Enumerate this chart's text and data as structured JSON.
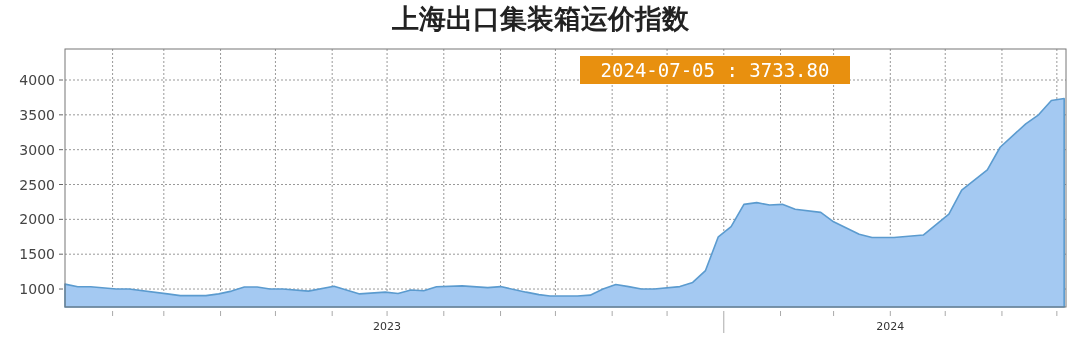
{
  "chart_data": {
    "type": "area",
    "title": "上海出口集装箱运价指数",
    "annotations": [
      "2024-07-05 : 3733.80"
    ],
    "xlim": [
      "2023-01-06",
      "2024-07-06"
    ],
    "xticks": [
      {
        "value": "2023-02-01",
        "label": null
      },
      {
        "value": "2023-03-01",
        "label": null
      },
      {
        "value": "2023-04-01",
        "label": null
      },
      {
        "value": "2023-05-01",
        "label": null
      },
      {
        "value": "2023-06-01",
        "label": null
      },
      {
        "value": "2023-07-01",
        "label": "2023"
      },
      {
        "value": "2023-08-01",
        "label": null
      },
      {
        "value": "2023-09-01",
        "label": null
      },
      {
        "value": "2023-10-01",
        "label": null
      },
      {
        "value": "2023-11-01",
        "label": null
      },
      {
        "value": "2023-12-01",
        "label": null
      },
      {
        "value": "2024-01-01",
        "label": null
      },
      {
        "value": "2024-02-01",
        "label": null
      },
      {
        "value": "2024-03-01",
        "label": null
      },
      {
        "value": "2024-04-01",
        "label": "2024"
      },
      {
        "value": "2024-05-01",
        "label": null
      },
      {
        "value": "2024-06-01",
        "label": null
      },
      {
        "value": "2024-07-01",
        "label": null
      }
    ],
    "ylim": [
      742,
      4445
    ],
    "yticks": [
      1000,
      1500,
      2000,
      2500,
      3000,
      3500,
      4000
    ],
    "grid": true,
    "x": [
      "2023-01-06",
      "2023-01-13",
      "2023-01-20",
      "2023-02-03",
      "2023-02-10",
      "2023-03-03",
      "2023-03-10",
      "2023-03-24",
      "2023-03-31",
      "2023-04-07",
      "2023-04-14",
      "2023-04-21",
      "2023-04-28",
      "2023-05-05",
      "2023-05-19",
      "2023-06-02",
      "2023-06-16",
      "2023-06-30",
      "2023-07-07",
      "2023-07-14",
      "2023-07-21",
      "2023-07-28",
      "2023-08-11",
      "2023-08-25",
      "2023-09-01",
      "2023-09-15",
      "2023-09-22",
      "2023-09-28",
      "2023-10-13",
      "2023-10-20",
      "2023-10-27",
      "2023-11-03",
      "2023-11-10",
      "2023-11-17",
      "2023-11-24",
      "2023-12-08",
      "2023-12-15",
      "2023-12-22",
      "2023-12-29",
      "2024-01-05",
      "2024-01-12",
      "2024-01-19",
      "2024-01-26",
      "2024-02-02",
      "2024-02-09",
      "2024-02-23",
      "2024-03-01",
      "2024-03-15",
      "2024-03-22",
      "2024-04-03",
      "2024-04-19",
      "2024-05-03",
      "2024-05-10",
      "2024-05-24",
      "2024-05-31",
      "2024-06-14",
      "2024-06-21",
      "2024-06-28",
      "2024-07-05"
    ],
    "series": [
      {
        "color": "#a4c9f2",
        "values": [
          1070,
          1033,
          1033,
          1000,
          1000,
          930,
          905,
          905,
          930,
          970,
          1030,
          1030,
          1000,
          1000,
          970,
          1040,
          930,
          955,
          935,
          985,
          975,
          1033,
          1045,
          1020,
          1035,
          955,
          920,
          900,
          900,
          912,
          1000,
          1065,
          1035,
          1000,
          1000,
          1035,
          1095,
          1265,
          1750,
          1895,
          2215,
          2240,
          2205,
          2215,
          2145,
          2100,
          1965,
          1785,
          1740,
          1740,
          1775,
          2075,
          2420,
          2710,
          3035,
          3370,
          3500,
          3705,
          3733.8
        ]
      }
    ]
  }
}
